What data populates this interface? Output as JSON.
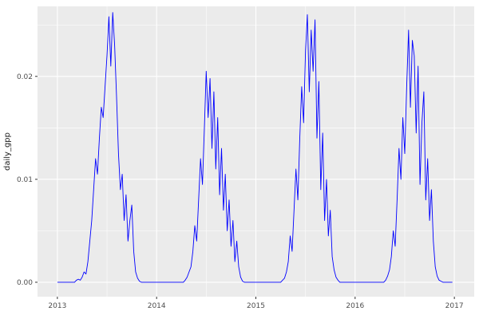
{
  "chart_data": {
    "type": "line",
    "title": "",
    "xlabel": "",
    "ylabel": "daily_gpp",
    "series_name": "daily_gpp",
    "legend_position": "none",
    "grid": "on",
    "style": "ggplot2",
    "line_color": "#0000FF",
    "panel_bg": "#EBEBEB",
    "grid_color": "#FFFFFF",
    "tick_color": "#333333",
    "xlim": [
      2012.8,
      2017.2
    ],
    "ylim": [
      -0.0014,
      0.0268
    ],
    "x_ticks": {
      "values": [
        2013,
        2014,
        2015,
        2016,
        2017
      ],
      "labels": [
        "2013",
        "2014",
        "2015",
        "2016",
        "2017"
      ]
    },
    "y_ticks": {
      "values": [
        0.0,
        0.01,
        0.02
      ],
      "labels": [
        "0.00",
        "0.01",
        "0.02"
      ]
    },
    "x_minor": [
      2013.5,
      2014.5,
      2015.5,
      2016.5
    ],
    "y_minor": [
      0.005,
      0.015,
      0.025
    ],
    "x_start": 2013.0,
    "x_step": 0.01923077,
    "values": [
      0,
      0,
      0,
      0,
      0,
      0,
      0,
      0,
      0,
      0,
      0.0002,
      0.0003,
      0.0002,
      0.0005,
      0.001,
      0.0008,
      0.002,
      0.004,
      0.006,
      0.009,
      0.012,
      0.0105,
      0.014,
      0.017,
      0.016,
      0.019,
      0.022,
      0.0258,
      0.021,
      0.0262,
      0.023,
      0.018,
      0.0125,
      0.009,
      0.0105,
      0.006,
      0.0085,
      0.004,
      0.006,
      0.0075,
      0.003,
      0.001,
      0.0004,
      0.0001,
      0,
      0,
      0,
      0,
      0,
      0,
      0,
      0,
      0,
      0,
      0,
      0,
      0,
      0,
      0,
      0,
      0,
      0,
      0,
      0,
      0,
      0,
      0,
      0.0002,
      0.0005,
      0.001,
      0.0015,
      0.003,
      0.0055,
      0.004,
      0.008,
      0.012,
      0.0095,
      0.015,
      0.0205,
      0.016,
      0.0198,
      0.013,
      0.0185,
      0.011,
      0.016,
      0.0085,
      0.013,
      0.007,
      0.0105,
      0.005,
      0.008,
      0.0035,
      0.006,
      0.002,
      0.004,
      0.0015,
      0.0005,
      0.0001,
      0,
      0,
      0,
      0,
      0,
      0,
      0,
      0,
      0,
      0,
      0,
      0,
      0,
      0,
      0,
      0,
      0,
      0,
      0,
      0,
      0.0002,
      0.0004,
      0.001,
      0.002,
      0.0045,
      0.003,
      0.007,
      0.011,
      0.008,
      0.014,
      0.019,
      0.0155,
      0.0225,
      0.026,
      0.0185,
      0.0245,
      0.0205,
      0.0255,
      0.014,
      0.0195,
      0.009,
      0.0145,
      0.006,
      0.01,
      0.0045,
      0.007,
      0.0025,
      0.0012,
      0.0005,
      0.0002,
      0,
      0,
      0,
      0,
      0,
      0,
      0,
      0,
      0,
      0,
      0,
      0,
      0,
      0,
      0,
      0,
      0,
      0,
      0,
      0,
      0,
      0,
      0,
      0,
      0.0002,
      0.0006,
      0.0012,
      0.0025,
      0.005,
      0.0035,
      0.008,
      0.013,
      0.01,
      0.016,
      0.0125,
      0.019,
      0.0245,
      0.017,
      0.0235,
      0.022,
      0.0145,
      0.021,
      0.0095,
      0.0155,
      0.0185,
      0.008,
      0.012,
      0.006,
      0.009,
      0.004,
      0.0015,
      0.0006,
      0.0002,
      0.0001,
      0,
      0,
      0,
      0,
      0,
      0
    ]
  }
}
